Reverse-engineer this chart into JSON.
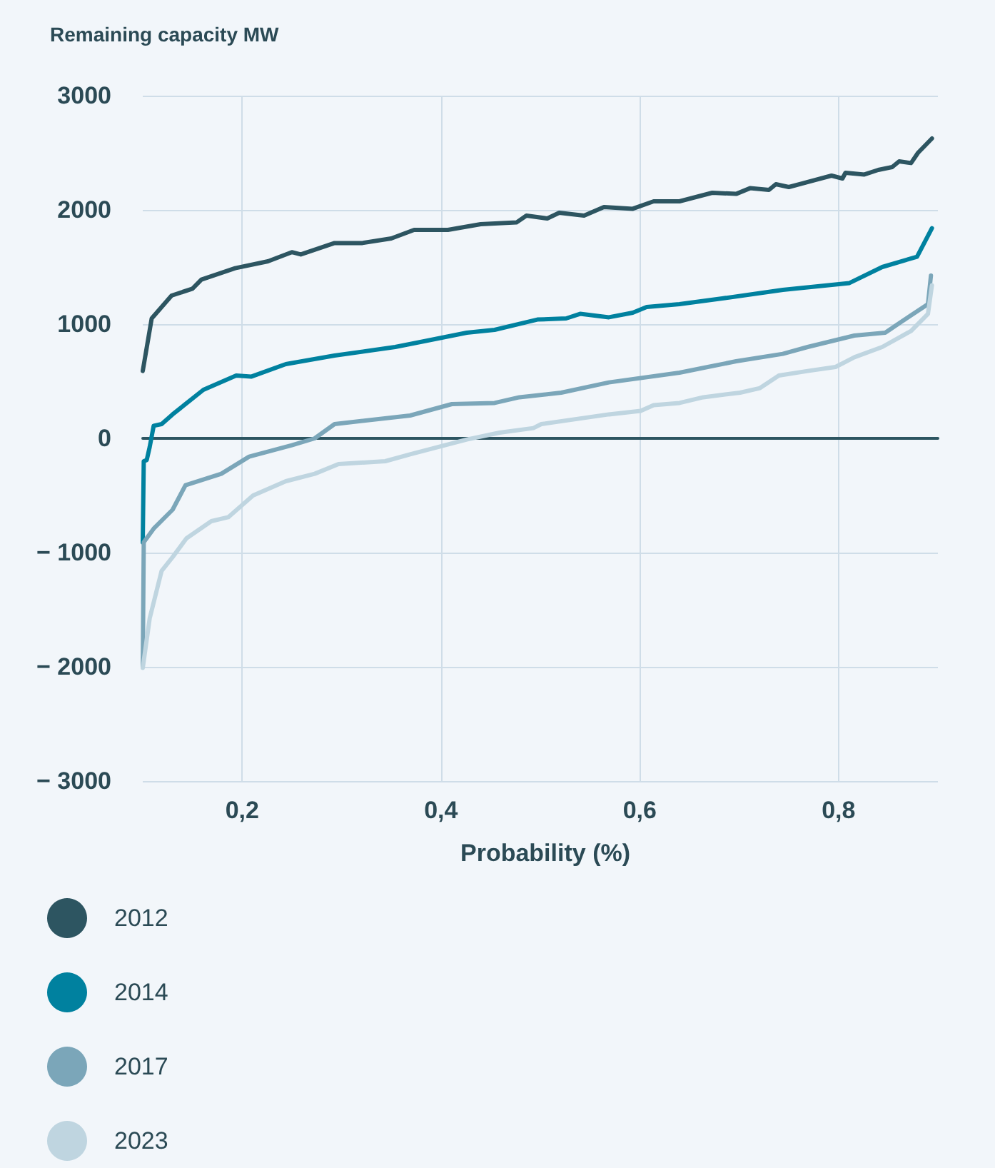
{
  "chart_data": {
    "type": "line",
    "ylabel": "Remaining capacity MW",
    "xlabel": "Probability (%)",
    "xlim": [
      0.1,
      0.9
    ],
    "xticks": [
      {
        "value": 0.2,
        "label": "0,2"
      },
      {
        "value": 0.4,
        "label": "0,4"
      },
      {
        "value": 0.6,
        "label": "0,6"
      },
      {
        "value": 0.8,
        "label": "0,8"
      }
    ],
    "ylim": [
      -3000,
      3000
    ],
    "yticks": [
      {
        "value": -3000,
        "label": "− 3000"
      },
      {
        "value": -2000,
        "label": "− 2000"
      },
      {
        "value": -1000,
        "label": "− 1000"
      },
      0,
      1000,
      2000,
      3000
    ],
    "grid": true,
    "legend": "bottom left",
    "marker": "none",
    "line_style": "solid",
    "series": [
      {
        "name": "2012",
        "color": "#2d5561",
        "x": [
          0.1,
          0.109,
          0.129,
          0.15,
          0.159,
          0.193,
          0.226,
          0.25,
          0.259,
          0.293,
          0.321,
          0.35,
          0.373,
          0.407,
          0.44,
          0.476,
          0.486,
          0.507,
          0.519,
          0.544,
          0.564,
          0.593,
          0.614,
          0.64,
          0.673,
          0.697,
          0.711,
          0.73,
          0.737,
          0.75,
          0.793,
          0.804,
          0.807,
          0.826,
          0.84,
          0.854,
          0.861,
          0.873,
          0.88,
          0.894
        ],
        "values": [
          590,
          1050,
          1250,
          1310,
          1390,
          1490,
          1550,
          1630,
          1610,
          1710,
          1710,
          1750,
          1825,
          1825,
          1875,
          1890,
          1950,
          1925,
          1975,
          1950,
          2025,
          2010,
          2075,
          2075,
          2150,
          2140,
          2190,
          2175,
          2225,
          2200,
          2300,
          2275,
          2325,
          2310,
          2350,
          2375,
          2425,
          2410,
          2500,
          2625
        ]
      },
      {
        "name": "2014",
        "color": "#00819f",
        "x": [
          0.1,
          0.101,
          0.104,
          0.107,
          0.111,
          0.119,
          0.13,
          0.161,
          0.194,
          0.209,
          0.244,
          0.293,
          0.354,
          0.383,
          0.426,
          0.454,
          0.497,
          0.526,
          0.54,
          0.569,
          0.593,
          0.607,
          0.64,
          0.683,
          0.744,
          0.811,
          0.844,
          0.879,
          0.894
        ],
        "values": [
          -910,
          -200,
          -190,
          -75,
          110,
          125,
          210,
          425,
          550,
          540,
          650,
          725,
          800,
          850,
          925,
          950,
          1040,
          1050,
          1090,
          1060,
          1100,
          1150,
          1175,
          1225,
          1300,
          1360,
          1500,
          1590,
          1840
        ]
      },
      {
        "name": "2017",
        "color": "#7ba6b9",
        "x": [
          0.1,
          0.101,
          0.111,
          0.13,
          0.143,
          0.179,
          0.207,
          0.25,
          0.273,
          0.293,
          0.369,
          0.411,
          0.454,
          0.479,
          0.521,
          0.569,
          0.64,
          0.697,
          0.744,
          0.769,
          0.816,
          0.847,
          0.864,
          0.89,
          0.893
        ],
        "values": [
          -2000,
          -910,
          -790,
          -625,
          -410,
          -310,
          -160,
          -60,
          0,
          125,
          200,
          300,
          310,
          360,
          400,
          490,
          575,
          675,
          740,
          800,
          900,
          925,
          1025,
          1175,
          1425
        ]
      },
      {
        "name": "2023",
        "color": "#bfd5e0",
        "x": [
          0.1,
          0.107,
          0.119,
          0.13,
          0.144,
          0.169,
          0.186,
          0.211,
          0.244,
          0.273,
          0.297,
          0.344,
          0.369,
          0.426,
          0.459,
          0.493,
          0.501,
          0.569,
          0.601,
          0.614,
          0.64,
          0.664,
          0.701,
          0.721,
          0.74,
          0.769,
          0.797,
          0.816,
          0.844,
          0.873,
          0.89,
          0.894
        ],
        "values": [
          -2010,
          -1575,
          -1160,
          -1040,
          -875,
          -725,
          -690,
          -500,
          -375,
          -310,
          -225,
          -200,
          -140,
          -10,
          50,
          90,
          125,
          210,
          240,
          290,
          310,
          360,
          400,
          440,
          550,
          590,
          625,
          710,
          800,
          940,
          1090,
          1340
        ]
      }
    ]
  }
}
